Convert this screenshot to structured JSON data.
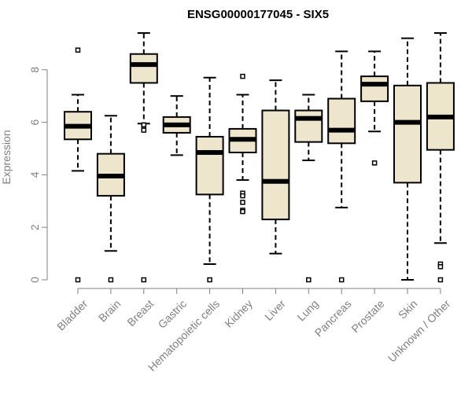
{
  "chart_data": {
    "type": "boxplot",
    "title": "ENSG00000177045 - SIX5",
    "xlabel": "",
    "ylabel": "Expression",
    "ylim": [
      0,
      9.4
    ],
    "yticks": [
      0,
      2,
      4,
      6,
      8
    ],
    "box_fill": "#ede6cc",
    "stroke_color": "#000000",
    "axis_color": "#808080",
    "categories": [
      "Bladder",
      "Brain",
      "Breast",
      "Gastric",
      "Hematopoietic cells",
      "Kidney",
      "Liver",
      "Lung",
      "Pancreas",
      "Prostate",
      "Skin",
      "Unknown / Other"
    ],
    "boxes": [
      {
        "name": "Bladder",
        "whisker_low": 4.15,
        "q1": 5.35,
        "median": 5.85,
        "q3": 6.4,
        "whisker_high": 7.05,
        "outliers": [
          8.75,
          0
        ]
      },
      {
        "name": "Brain",
        "whisker_low": 1.1,
        "q1": 3.2,
        "median": 3.95,
        "q3": 4.8,
        "whisker_high": 6.25,
        "outliers": [
          0
        ]
      },
      {
        "name": "Breast",
        "whisker_low": 5.95,
        "q1": 7.5,
        "median": 8.2,
        "q3": 8.6,
        "whisker_high": 9.4,
        "outliers": [
          5.9,
          5.75,
          5.7,
          0
        ]
      },
      {
        "name": "Gastric",
        "whisker_low": 4.75,
        "q1": 5.6,
        "median": 5.9,
        "q3": 6.2,
        "whisker_high": 7.0,
        "outliers": []
      },
      {
        "name": "Hematopoietic cells",
        "whisker_low": 0.6,
        "q1": 3.25,
        "median": 4.85,
        "q3": 5.45,
        "whisker_high": 7.7,
        "outliers": [
          0
        ]
      },
      {
        "name": "Kidney",
        "whisker_low": 3.8,
        "q1": 4.85,
        "median": 5.35,
        "q3": 5.75,
        "whisker_high": 7.05,
        "outliers": [
          7.75,
          3.3,
          3.2,
          2.95,
          2.65,
          2.6
        ]
      },
      {
        "name": "Liver",
        "whisker_low": 1.0,
        "q1": 2.3,
        "median": 3.75,
        "q3": 6.45,
        "whisker_high": 7.6,
        "outliers": []
      },
      {
        "name": "Lung",
        "whisker_low": 4.55,
        "q1": 5.25,
        "median": 6.15,
        "q3": 6.45,
        "whisker_high": 7.05,
        "outliers": [
          0
        ]
      },
      {
        "name": "Pancreas",
        "whisker_low": 2.75,
        "q1": 5.2,
        "median": 5.7,
        "q3": 6.9,
        "whisker_high": 8.7,
        "outliers": [
          0
        ]
      },
      {
        "name": "Prostate",
        "whisker_low": 5.65,
        "q1": 6.8,
        "median": 7.45,
        "q3": 7.75,
        "whisker_high": 8.7,
        "outliers": [
          4.45
        ]
      },
      {
        "name": "Skin",
        "whisker_low": 0.0,
        "q1": 3.7,
        "median": 6.0,
        "q3": 7.4,
        "whisker_high": 9.2,
        "outliers": []
      },
      {
        "name": "Unknown / Other",
        "whisker_low": 1.4,
        "q1": 4.95,
        "median": 6.2,
        "q3": 7.5,
        "whisker_high": 9.4,
        "outliers": [
          0.6,
          0.5,
          0
        ]
      }
    ]
  }
}
